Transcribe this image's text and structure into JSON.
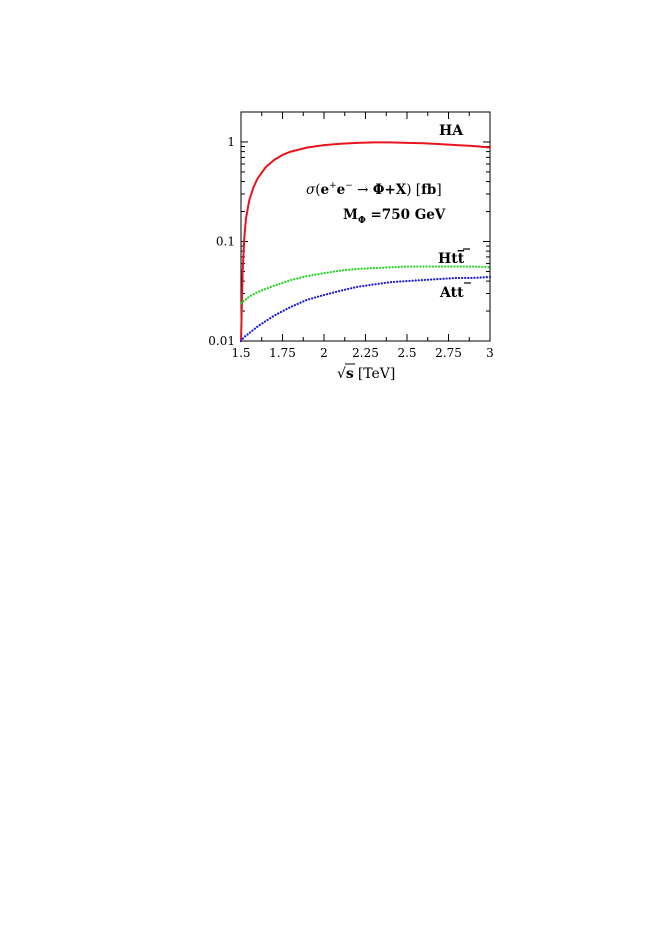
{
  "chart_data": {
    "type": "line",
    "xlabel_parts": {
      "sqrt": "√",
      "var": "s",
      "unit": "[TeV]"
    },
    "xlim": [
      1.5,
      3
    ],
    "ylim": [
      0.01,
      2
    ],
    "yscale": "log",
    "x_ticks": [
      1.5,
      1.75,
      2,
      2.25,
      2.5,
      2.75,
      3
    ],
    "x_tick_labels": [
      "1.5",
      "1.75",
      "2",
      "2.25",
      "2.5",
      "2.75",
      "3"
    ],
    "y_ticks": [
      0.01,
      0.1,
      1
    ],
    "y_tick_labels": [
      "0.01",
      "0.1",
      "1"
    ],
    "annotation": {
      "line1": {
        "sigma": "σ",
        "open": "(",
        "e1": "e",
        "plus": "+",
        "e2": "e",
        "minus": "−",
        "arrow": " → ",
        "rest": "Φ+X",
        "close": ") [",
        "fb": "fb",
        "end": "]"
      },
      "line2": {
        "m": "M",
        "sub": "Φ",
        "value": " =750 GeV"
      }
    },
    "series": [
      {
        "name": "HA",
        "color": "#e8141e",
        "style": "solid",
        "x": [
          1.5,
          1.51,
          1.52,
          1.53,
          1.55,
          1.575,
          1.6,
          1.65,
          1.7,
          1.75,
          1.8,
          1.9,
          2.0,
          2.1,
          2.2,
          2.3,
          2.4,
          2.5,
          2.6,
          2.7,
          2.8,
          2.9,
          3.0
        ],
        "y": [
          0.01,
          0.05,
          0.11,
          0.17,
          0.26,
          0.35,
          0.43,
          0.56,
          0.66,
          0.74,
          0.8,
          0.88,
          0.93,
          0.96,
          0.98,
          0.99,
          0.99,
          0.98,
          0.97,
          0.95,
          0.93,
          0.91,
          0.88
        ]
      },
      {
        "name_parts": {
          "a": "Ht",
          "b": "t"
        },
        "color": "#22d422",
        "style": "dotted",
        "x": [
          1.5,
          1.55,
          1.6,
          1.7,
          1.8,
          1.9,
          2.0,
          2.1,
          2.2,
          2.3,
          2.4,
          2.5,
          2.6,
          2.7,
          2.8,
          2.9,
          3.0
        ],
        "y": [
          0.024,
          0.028,
          0.031,
          0.036,
          0.041,
          0.045,
          0.048,
          0.051,
          0.053,
          0.054,
          0.055,
          0.056,
          0.056,
          0.056,
          0.056,
          0.056,
          0.055
        ]
      },
      {
        "name_parts": {
          "a": "At",
          "b": "t"
        },
        "color": "#1a1ad8",
        "style": "dotted",
        "x": [
          1.5,
          1.52,
          1.55,
          1.6,
          1.7,
          1.8,
          1.9,
          2.0,
          2.1,
          2.2,
          2.3,
          2.4,
          2.5,
          2.6,
          2.7,
          2.8,
          2.9,
          3.0
        ],
        "y": [
          0.01,
          0.011,
          0.012,
          0.014,
          0.018,
          0.022,
          0.026,
          0.029,
          0.032,
          0.035,
          0.037,
          0.039,
          0.04,
          0.041,
          0.042,
          0.043,
          0.043,
          0.044
        ]
      }
    ]
  }
}
